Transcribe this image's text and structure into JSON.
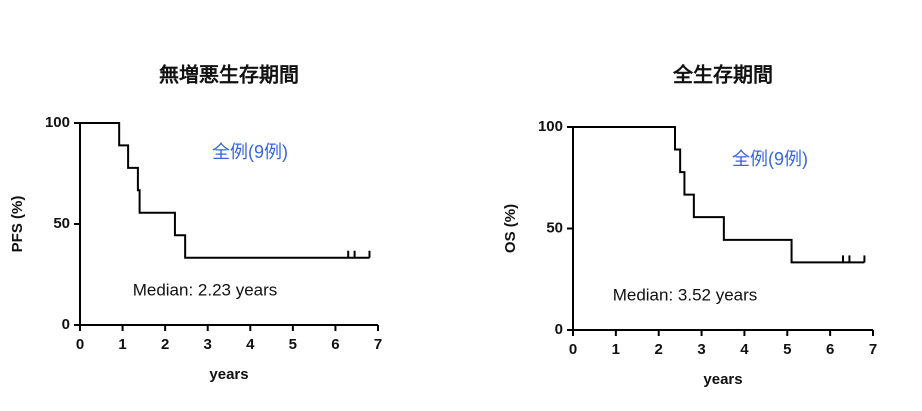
{
  "chart_data": [
    {
      "type": "step",
      "title": "無増悪生存期間",
      "x_label": "years",
      "y_label": "PFS (%)",
      "annotations": [
        "全例(9例)",
        "Median: 2.23 years"
      ],
      "x": [
        0,
        0.92,
        1.13,
        1.36,
        1.4,
        2.23,
        2.47,
        6.8
      ],
      "values": [
        100,
        88.9,
        77.8,
        66.7,
        55.6,
        44.4,
        33.3,
        33.3
      ],
      "censored": {
        "x": [
          6.3,
          6.45,
          6.8
        ],
        "values": [
          33.3,
          33.3,
          33.3
        ]
      },
      "color": "#000000",
      "xlim": [
        0,
        7
      ],
      "xticks": [
        0,
        1,
        2,
        3,
        4,
        5,
        6,
        7
      ],
      "ylim": [
        0,
        100
      ],
      "yticks": [
        0,
        50,
        100
      ]
    },
    {
      "type": "step",
      "title": "全生存期間",
      "x_label": "years",
      "y_label": "OS (%)",
      "annotations": [
        "全例(9例)",
        "Median: 3.52 years"
      ],
      "x": [
        0,
        2.38,
        2.5,
        2.6,
        2.82,
        3.52,
        5.1,
        6.8
      ],
      "values": [
        100,
        88.9,
        77.8,
        66.7,
        55.6,
        44.4,
        33.3,
        33.3
      ],
      "censored": {
        "x": [
          6.3,
          6.45,
          6.8
        ],
        "values": [
          33.3,
          33.3,
          33.3
        ]
      },
      "color": "#000000",
      "xlim": [
        0,
        7
      ],
      "xticks": [
        0,
        1,
        2,
        3,
        4,
        5,
        6,
        7
      ],
      "ylim": [
        0,
        100
      ],
      "yticks": [
        0,
        50,
        100
      ]
    }
  ]
}
